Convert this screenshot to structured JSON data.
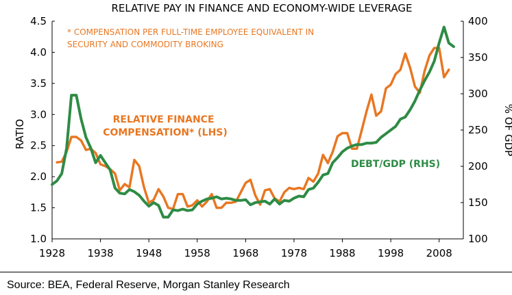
{
  "chart_data": {
    "type": "line",
    "title": "RELATIVE PAY IN FINANCE AND ECONOMY-WIDE LEVERAGE",
    "footnote": "* COMPENSATION PER FULL-TIME EMPLOYEE EQUIVALENT IN SECURITY AND COMMODITY BROKING",
    "footnote_lines": [
      "* COMPENSATION PER FULL-TIME EMPLOYEE EQUIVALENT IN",
      "SECURITY AND COMMODITY BROKING"
    ],
    "ylabel": "RATIO",
    "y2label": "% OF GDP",
    "x_ticks": [
      "1928",
      "1938",
      "1948",
      "1958",
      "1968",
      "1978",
      "1988",
      "1998",
      "2008"
    ],
    "x_tick_values": [
      1928,
      1938,
      1948,
      1958,
      1968,
      1978,
      1988,
      1998,
      2008
    ],
    "xlim": [
      1928,
      2013
    ],
    "ylim": [
      1.0,
      4.5
    ],
    "y_ticks": [
      "1.0",
      "1.5",
      "2.0",
      "2.5",
      "3.0",
      "3.5",
      "4.0",
      "4.5"
    ],
    "y_tick_values": [
      1.0,
      1.5,
      2.0,
      2.5,
      3.0,
      3.5,
      4.0,
      4.5
    ],
    "y2lim": [
      100,
      400
    ],
    "y2_ticks": [
      "100",
      "150",
      "200",
      "250",
      "300",
      "350",
      "400"
    ],
    "y2_tick_values": [
      100,
      150,
      200,
      250,
      300,
      350,
      400
    ],
    "grid": false,
    "series": [
      {
        "name": "RELATIVE FINANCE COMPENSATION* (LHS)",
        "name_lines": [
          "RELATIVE FINANCE",
          "COMPENSATION* (LHS)"
        ],
        "axis": "left",
        "color": "#e87722",
        "x": [
          1929,
          1930,
          1931,
          1932,
          1933,
          1934,
          1935,
          1936,
          1937,
          1938,
          1939,
          1940,
          1941,
          1942,
          1943,
          1944,
          1945,
          1946,
          1947,
          1948,
          1949,
          1950,
          1951,
          1952,
          1953,
          1954,
          1955,
          1956,
          1957,
          1958,
          1959,
          1960,
          1961,
          1962,
          1963,
          1964,
          1965,
          1966,
          1967,
          1968,
          1969,
          1970,
          1971,
          1972,
          1973,
          1974,
          1975,
          1976,
          1977,
          1978,
          1979,
          1980,
          1981,
          1982,
          1983,
          1984,
          1985,
          1986,
          1987,
          1988,
          1989,
          1990,
          1991,
          1992,
          1993,
          1994,
          1995,
          1996,
          1997,
          1998,
          1999,
          2000,
          2001,
          2002,
          2003,
          2004,
          2005,
          2006,
          2007,
          2008,
          2009,
          2010
        ],
        "values": [
          2.23,
          2.24,
          2.4,
          2.64,
          2.64,
          2.58,
          2.43,
          2.45,
          2.38,
          2.2,
          2.17,
          2.12,
          2.05,
          1.78,
          1.88,
          1.83,
          2.27,
          2.17,
          1.83,
          1.58,
          1.63,
          1.8,
          1.68,
          1.5,
          1.48,
          1.72,
          1.72,
          1.52,
          1.54,
          1.62,
          1.52,
          1.6,
          1.72,
          1.5,
          1.5,
          1.58,
          1.58,
          1.6,
          1.75,
          1.9,
          1.95,
          1.7,
          1.55,
          1.78,
          1.8,
          1.65,
          1.6,
          1.75,
          1.82,
          1.8,
          1.82,
          1.8,
          1.98,
          1.92,
          2.05,
          2.35,
          2.22,
          2.4,
          2.65,
          2.7,
          2.7,
          2.45,
          2.45,
          2.75,
          3.05,
          3.32,
          2.98,
          3.05,
          3.42,
          3.48,
          3.65,
          3.72,
          3.98,
          3.75,
          3.45,
          3.35,
          3.7,
          3.95,
          4.07,
          4.07,
          3.6,
          3.72
        ]
      },
      {
        "name": "DEBT/GDP (RHS)",
        "axis": "right",
        "color": "#2e8b45",
        "x": [
          1928,
          1929,
          1930,
          1931,
          1932,
          1933,
          1934,
          1935,
          1936,
          1937,
          1938,
          1939,
          1940,
          1941,
          1942,
          1943,
          1944,
          1945,
          1946,
          1947,
          1948,
          1949,
          1950,
          1951,
          1952,
          1953,
          1954,
          1955,
          1956,
          1957,
          1958,
          1959,
          1960,
          1961,
          1962,
          1963,
          1964,
          1965,
          1966,
          1967,
          1968,
          1969,
          1970,
          1971,
          1972,
          1973,
          1974,
          1975,
          1976,
          1977,
          1978,
          1979,
          1980,
          1981,
          1982,
          1983,
          1984,
          1985,
          1986,
          1987,
          1988,
          1989,
          1990,
          1991,
          1992,
          1993,
          1994,
          1995,
          1996,
          1997,
          1998,
          1999,
          2000,
          2001,
          2002,
          2003,
          2004,
          2005,
          2006,
          2007,
          2008,
          2009,
          2010,
          2011
        ],
        "values": [
          175,
          180,
          190,
          225,
          298,
          298,
          265,
          240,
          225,
          205,
          215,
          205,
          195,
          170,
          163,
          162,
          168,
          165,
          160,
          152,
          145,
          150,
          146,
          130,
          130,
          140,
          139,
          141,
          139,
          140,
          148,
          152,
          155,
          156,
          158,
          155,
          156,
          155,
          153,
          153,
          154,
          147,
          150,
          151,
          152,
          148,
          155,
          148,
          153,
          152,
          156,
          159,
          158,
          168,
          170,
          178,
          188,
          190,
          205,
          212,
          220,
          225,
          228,
          230,
          230,
          232,
          232,
          233,
          240,
          245,
          250,
          255,
          265,
          268,
          278,
          290,
          305,
          318,
          330,
          345,
          370,
          392,
          370,
          365
        ]
      }
    ]
  },
  "source": "Source: BEA, Federal Reserve, Morgan Stanley Research"
}
